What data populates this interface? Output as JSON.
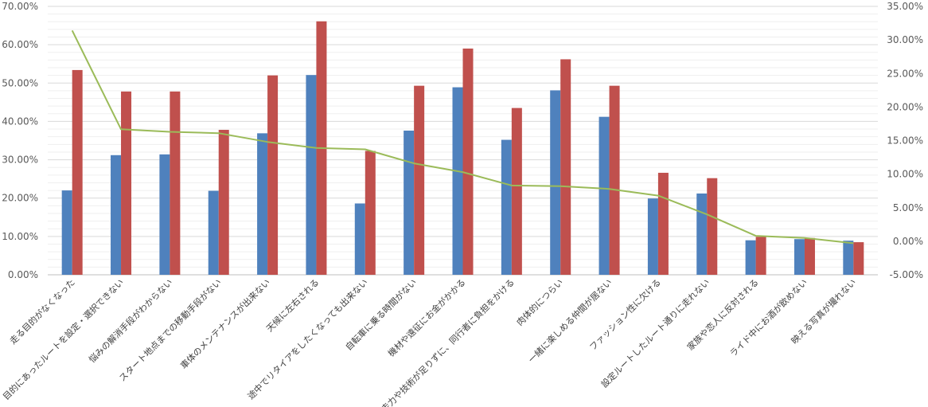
{
  "chart_data": {
    "type": "bar",
    "categories": [
      "走る目的がなくなった",
      "目的にあったルートを設定・選択できない",
      "悩みの解消手段がわからない",
      "スタート地点までの移動手段がない",
      "車体のメンテナンスが出来ない",
      "天候に左右される",
      "途中でリタイアをしたくなっても出来ない",
      "自転車に乗る時間がない",
      "機材や遠征にお金がかかる",
      "走力や技術が足りずに、同行者に負担をかける",
      "肉体的につらい",
      "一緒に楽しめる仲間が居ない",
      "ファッション性に欠ける",
      "設定ルートしたルート通りに走れない",
      "家族や恋人に反対される",
      "ライド中にお酒が飲めない",
      "映える写真が撮れない"
    ],
    "series": [
      {
        "axis": "left",
        "kind": "bar",
        "color": "#4F81BD",
        "values": [
          22.0,
          31.2,
          31.4,
          21.9,
          36.9,
          52.1,
          18.6,
          37.6,
          48.9,
          35.2,
          48.1,
          41.2,
          19.9,
          21.2,
          9.0,
          9.3,
          8.9
        ]
      },
      {
        "axis": "left",
        "kind": "bar",
        "color": "#C0504D",
        "values": [
          53.4,
          47.8,
          47.8,
          37.8,
          52.0,
          66.1,
          32.3,
          49.3,
          59.0,
          43.5,
          56.2,
          49.3,
          26.6,
          25.2,
          9.9,
          9.6,
          8.5
        ]
      },
      {
        "axis": "right",
        "kind": "line",
        "color": "#9BBB59",
        "values": [
          31.4,
          16.7,
          16.3,
          16.1,
          14.8,
          13.9,
          13.7,
          11.6,
          10.3,
          8.3,
          8.2,
          7.8,
          6.8,
          4.0,
          0.8,
          0.5,
          -0.3
        ]
      }
    ],
    "yaxis_left": {
      "min": 0,
      "max": 70,
      "step": 10,
      "tick_labels": [
        "0.00%",
        "10.00%",
        "20.00%",
        "30.00%",
        "40.00%",
        "50.00%",
        "60.00%",
        "70.00%"
      ]
    },
    "yaxis_right": {
      "min": -5,
      "max": 35,
      "step": 5,
      "tick_labels": [
        "-5.00%",
        "0.00%",
        "5.00%",
        "10.00%",
        "15.00%",
        "20.00%",
        "25.00%",
        "30.00%",
        "35.00%"
      ]
    },
    "grid": true,
    "legend": "none"
  }
}
